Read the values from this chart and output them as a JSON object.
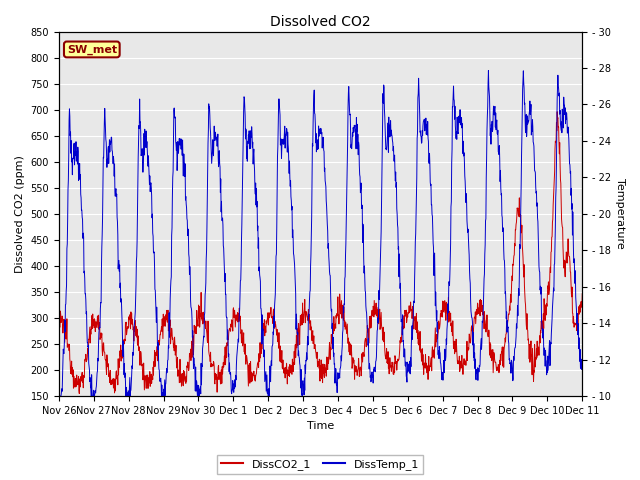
{
  "title": "Dissolved CO2",
  "xlabel": "Time",
  "ylabel_left": "Dissolved CO2 (ppm)",
  "ylabel_right": "Temperature",
  "ylim_left": [
    150,
    850
  ],
  "ylim_right": [
    10,
    30
  ],
  "yticks_left": [
    150,
    200,
    250,
    300,
    350,
    400,
    450,
    500,
    550,
    600,
    650,
    700,
    750,
    800,
    850
  ],
  "yticks_right": [
    10,
    12,
    14,
    16,
    18,
    20,
    22,
    24,
    26,
    28,
    30
  ],
  "line1_color": "#cc0000",
  "line2_color": "#0000cc",
  "line1_label": "DissCO2_1",
  "line2_label": "DissTemp_1",
  "label_box_text": "SW_met",
  "label_box_bg": "#ffff99",
  "label_box_edge": "#8b0000",
  "plot_bg": "#e8e8e8",
  "fig_bg": "#ffffff",
  "xtick_labels": [
    "Nov 26",
    "Nov 27",
    "Nov 28",
    "Nov 29",
    "Nov 30",
    "Dec 1",
    "Dec 2",
    "Dec 3",
    "Dec 4",
    "Dec 5",
    "Dec 6",
    "Dec 7",
    "Dec 8",
    "Dec 9",
    "Dec 10",
    "Dec 11"
  ],
  "num_days": 15,
  "points_per_day": 96,
  "title_fontsize": 10,
  "label_fontsize": 8,
  "tick_fontsize": 7,
  "legend_fontsize": 8
}
